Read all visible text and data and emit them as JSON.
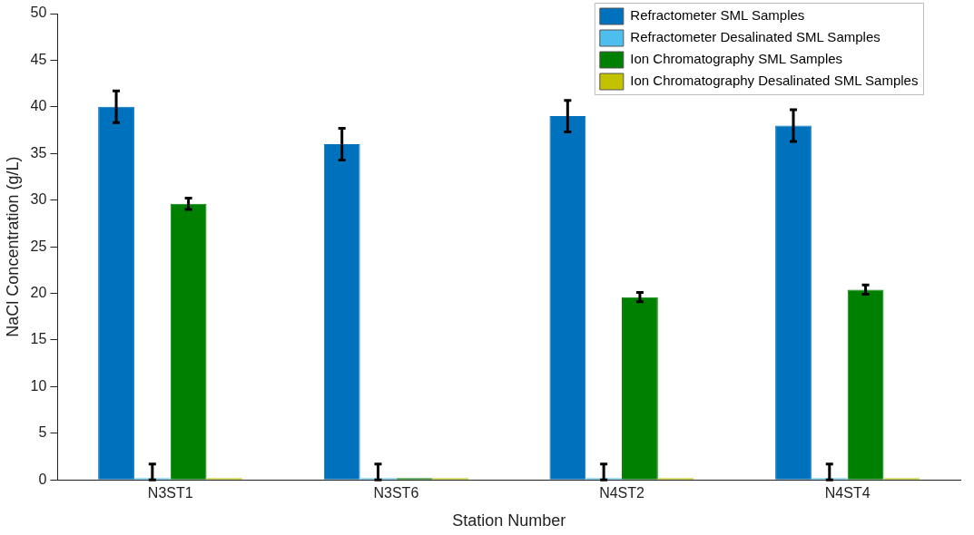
{
  "chart_data": {
    "type": "bar",
    "xlabel": "Station Number",
    "ylabel": "NaCl Concentration (g/L)",
    "categories": [
      "N3ST1",
      "N3ST6",
      "N4ST2",
      "N4ST4"
    ],
    "series": [
      {
        "name": "Refractometer SML Samples",
        "color": "#0072bd",
        "values": [
          40,
          36,
          39,
          38
        ],
        "errors": [
          1.7,
          1.7,
          1.7,
          1.7
        ]
      },
      {
        "name": "Refractometer Desalinated SML Samples",
        "color": "#4dbeee",
        "values": [
          0,
          0,
          0,
          0
        ],
        "errors": [
          [
            0,
            1.7
          ],
          [
            0,
            1.7
          ],
          [
            0,
            1.7
          ],
          [
            0,
            1.7
          ]
        ]
      },
      {
        "name": "Ion Chromatography SML Samples",
        "color": "#008000",
        "values": [
          29.6,
          0,
          19.6,
          20.4
        ],
        "errors": [
          0.6,
          null,
          0.5,
          0.5
        ]
      },
      {
        "name": "Ion Chromatography Desalinated SML Samples",
        "color": "#c2c200",
        "values": [
          0,
          0,
          0,
          0
        ]
      }
    ],
    "ylim": [
      0,
      50
    ],
    "yticks": [
      0,
      5,
      10,
      15,
      20,
      25,
      30,
      35,
      40,
      45,
      50
    ],
    "grid": false,
    "legend": "top right"
  }
}
